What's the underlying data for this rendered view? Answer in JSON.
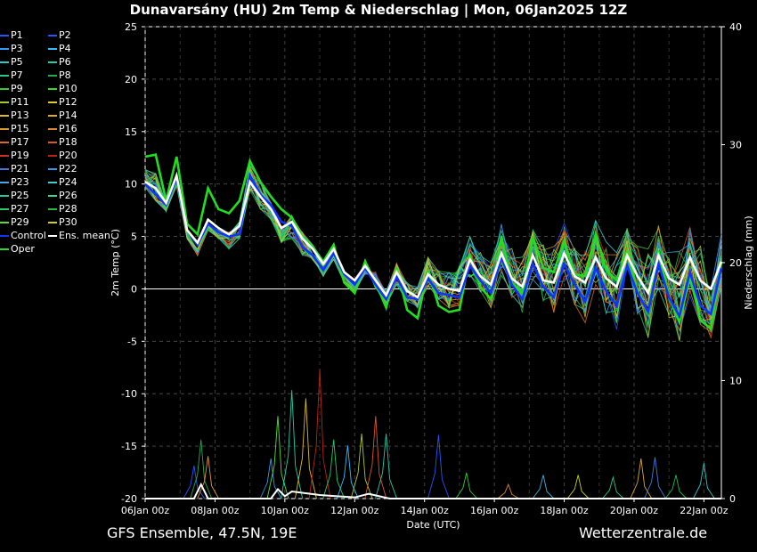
{
  "title": "Dunavarsány  (HU)  2m Temp & Niederschlag | Mon, 06Jan2025 12Z",
  "footer": {
    "left": "GFS Ensemble, 47.5N, 19E",
    "right": "Wetterzentrale.de"
  },
  "legend": [
    {
      "label": "P1",
      "color": "#2255ff"
    },
    {
      "label": "P2",
      "color": "#2255ff"
    },
    {
      "label": "P3",
      "color": "#3399ff"
    },
    {
      "label": "P4",
      "color": "#33bbff"
    },
    {
      "label": "P5",
      "color": "#22cccc"
    },
    {
      "label": "P6",
      "color": "#22ccaa"
    },
    {
      "label": "P7",
      "color": "#22cc88"
    },
    {
      "label": "P8",
      "color": "#22aa55"
    },
    {
      "label": "P9",
      "color": "#33cc33"
    },
    {
      "label": "P10",
      "color": "#33dd22"
    },
    {
      "label": "P11",
      "color": "#aacc22"
    },
    {
      "label": "P12",
      "color": "#ddcc22"
    },
    {
      "label": "P13",
      "color": "#ddbb22"
    },
    {
      "label": "P14",
      "color": "#ddaa22"
    },
    {
      "label": "P15",
      "color": "#dd9933"
    },
    {
      "label": "P16",
      "color": "#dd8833"
    },
    {
      "label": "P17",
      "color": "#dd6633"
    },
    {
      "label": "P18",
      "color": "#dd5522"
    },
    {
      "label": "P19",
      "color": "#cc3322"
    },
    {
      "label": "P20",
      "color": "#bb2211"
    },
    {
      "label": "P21",
      "color": "#4477dd"
    },
    {
      "label": "P22",
      "color": "#3399ee"
    },
    {
      "label": "P23",
      "color": "#44aadd"
    },
    {
      "label": "P24",
      "color": "#44cccc"
    },
    {
      "label": "P25",
      "color": "#22ccaa"
    },
    {
      "label": "P26",
      "color": "#33dd99"
    },
    {
      "label": "P27",
      "color": "#22cc66"
    },
    {
      "label": "P28",
      "color": "#22bb44"
    },
    {
      "label": "P29",
      "color": "#55dd33"
    },
    {
      "label": "P30",
      "color": "#cccc22"
    },
    {
      "label": "Control",
      "color": "#1133ff"
    },
    {
      "label": "Ens. mean",
      "color": "#ffffff"
    },
    {
      "label": "Oper",
      "color": "#22dd22"
    }
  ],
  "chart_data": {
    "type": "line",
    "xlabel": "Date (UTC)",
    "ylabel": "2m Temp (°C)",
    "y2label": "Niederschlag (mm)",
    "ylim": [
      -20,
      25
    ],
    "y2lim": [
      0,
      40
    ],
    "yticks": [
      "25",
      "20",
      "15",
      "10",
      "5",
      "0",
      "-5",
      "-10",
      "-15",
      "-20"
    ],
    "y2ticks": [
      "40",
      "30",
      "20",
      "10",
      "0"
    ],
    "xlim": [
      0,
      16.5
    ],
    "xticks": [
      {
        "v": 0,
        "label": "06Jan 00z"
      },
      {
        "v": 2,
        "label": "08Jan 00z"
      },
      {
        "v": 4,
        "label": "10Jan 00z"
      },
      {
        "v": 6,
        "label": "12Jan 00z"
      },
      {
        "v": 8,
        "label": "14Jan 00z"
      },
      {
        "v": 10,
        "label": "16Jan 00z"
      },
      {
        "v": 12,
        "label": "18Jan 00z"
      },
      {
        "v": 14,
        "label": "20Jan 00z"
      },
      {
        "v": 16,
        "label": "22Jan 00z"
      }
    ],
    "grid": true,
    "legend_position": "left",
    "ens_mean": [
      10.2,
      9.6,
      8.2,
      10.8,
      5.6,
      4.4,
      6.6,
      5.8,
      5.2,
      6.0,
      10.2,
      8.8,
      7.6,
      5.8,
      6.4,
      4.8,
      3.8,
      2.4,
      3.8,
      1.6,
      0.8,
      2.2,
      0.8,
      -0.6,
      1.6,
      -0.2,
      -0.8,
      1.4,
      0.4,
      0.0,
      -0.2,
      2.8,
      1.2,
      0.4,
      3.4,
      1.0,
      0.2,
      3.2,
      0.8,
      0.6,
      3.4,
      1.2,
      0.6,
      3.0,
      1.0,
      0.2,
      3.2,
      1.2,
      -0.4,
      3.2,
      1.0,
      0.4,
      3.0,
      0.8,
      0.0,
      2.6
    ],
    "control": [
      10.0,
      9.0,
      8.0,
      10.6,
      5.6,
      4.2,
      6.2,
      5.4,
      5.0,
      5.2,
      10.8,
      9.0,
      8.0,
      6.4,
      6.0,
      4.0,
      3.2,
      1.8,
      3.4,
      1.4,
      0.4,
      2.0,
      0.4,
      -1.0,
      1.2,
      -0.8,
      -1.0,
      1.0,
      -0.4,
      -0.6,
      -0.8,
      2.2,
      0.8,
      -0.4,
      3.0,
      0.4,
      -1.0,
      2.4,
      0.2,
      -0.8,
      2.4,
      0.4,
      -1.2,
      2.0,
      -0.2,
      -1.6,
      2.2,
      -0.4,
      -2.2,
      2.4,
      -0.8,
      -2.6,
      1.6,
      -1.6,
      -2.4,
      2.0
    ],
    "oper": [
      12.6,
      12.8,
      8.4,
      12.6,
      6.2,
      5.2,
      9.6,
      7.6,
      7.2,
      8.4,
      12.2,
      10.2,
      8.8,
      7.6,
      6.8,
      5.0,
      4.0,
      2.6,
      4.2,
      0.6,
      -0.4,
      2.6,
      0.6,
      -1.8,
      2.0,
      -2.0,
      -2.8,
      1.8,
      -1.6,
      -2.2,
      -2.0,
      3.2,
      0.2,
      -1.0,
      5.0,
      0.6,
      -0.4,
      5.0,
      2.0,
      1.6,
      4.6,
      1.4,
      1.2,
      5.2,
      1.8,
      0.8,
      3.6,
      -0.2,
      -2.4,
      3.6,
      -0.8,
      -3.2,
      1.2,
      -3.0,
      -3.8,
      2.6
    ],
    "members_spread": [
      [
        11.4,
        11.0,
        8.2,
        11.0,
        5.4,
        4.0,
        6.2,
        5.6,
        5.4,
        6.4,
        11.8,
        10.4,
        8.2,
        6.0,
        7.0,
        5.4,
        4.2,
        2.6,
        4.2,
        1.6,
        0.2,
        2.8,
        1.6,
        -0.2,
        2.4,
        0.6,
        0.2,
        3.0,
        1.8,
        1.6,
        2.2,
        4.4,
        3.0,
        2.2,
        5.4,
        3.0,
        2.4,
        5.6,
        3.4,
        3.2,
        5.4,
        3.6,
        2.8,
        5.6,
        3.4,
        2.6,
        5.2,
        3.4,
        2.6,
        5.0,
        3.2,
        2.4,
        4.8,
        2.8,
        2.2,
        4.0
      ],
      [
        9.6,
        8.4,
        7.4,
        9.8,
        4.8,
        3.2,
        5.6,
        4.8,
        3.8,
        4.8,
        9.4,
        7.6,
        6.6,
        4.4,
        4.8,
        3.2,
        2.6,
        1.2,
        2.8,
        0.6,
        -0.4,
        1.4,
        0.0,
        -1.6,
        0.4,
        -1.2,
        -1.8,
        0.2,
        -1.0,
        -1.8,
        -1.6,
        1.6,
        0.0,
        -1.0,
        2.0,
        -0.2,
        -1.6,
        1.8,
        -0.6,
        -1.8,
        1.6,
        -0.8,
        -2.2,
        1.2,
        -1.4,
        -2.8,
        1.4,
        -1.6,
        -3.6,
        1.0,
        -2.2,
        -3.8,
        0.6,
        -2.6,
        -3.4,
        1.4
      ]
    ],
    "precip_peaks": [
      {
        "x": 1.4,
        "mm": 2.8
      },
      {
        "x": 1.6,
        "mm": 5.0
      },
      {
        "x": 1.8,
        "mm": 3.6
      },
      {
        "x": 3.6,
        "mm": 3.4
      },
      {
        "x": 3.8,
        "mm": 7.0
      },
      {
        "x": 4.2,
        "mm": 9.2
      },
      {
        "x": 4.6,
        "mm": 8.5
      },
      {
        "x": 5.0,
        "mm": 11.0
      },
      {
        "x": 5.4,
        "mm": 5.0
      },
      {
        "x": 5.8,
        "mm": 4.5
      },
      {
        "x": 6.2,
        "mm": 5.5
      },
      {
        "x": 6.6,
        "mm": 7.0
      },
      {
        "x": 6.9,
        "mm": 5.5
      },
      {
        "x": 8.4,
        "mm": 5.4
      },
      {
        "x": 9.2,
        "mm": 2.2
      },
      {
        "x": 10.4,
        "mm": 1.2
      },
      {
        "x": 11.4,
        "mm": 2.0
      },
      {
        "x": 12.4,
        "mm": 2.0
      },
      {
        "x": 13.4,
        "mm": 1.8
      },
      {
        "x": 14.2,
        "mm": 3.4
      },
      {
        "x": 14.6,
        "mm": 3.5
      },
      {
        "x": 15.2,
        "mm": 2.0
      },
      {
        "x": 16.0,
        "mm": 3.0
      }
    ]
  }
}
